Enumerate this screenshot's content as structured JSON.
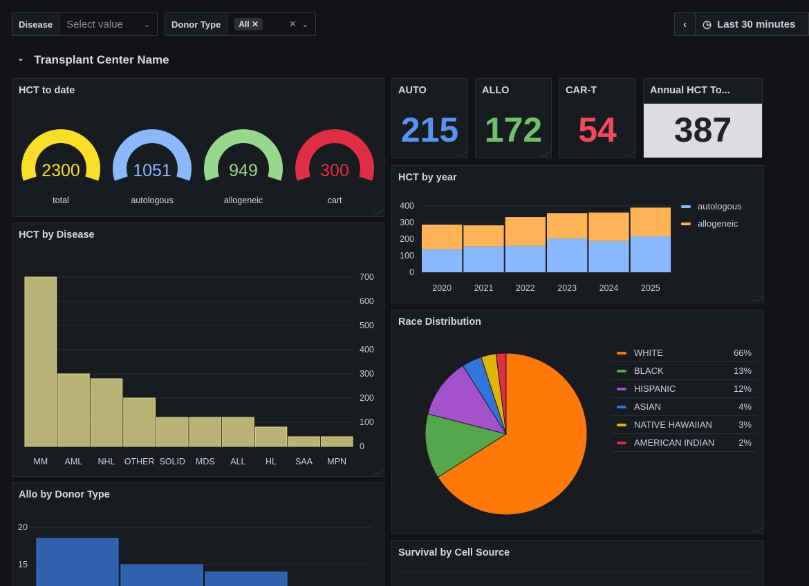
{
  "filters": {
    "disease": {
      "label": "Disease",
      "placeholder": "Select value"
    },
    "donor_type": {
      "label": "Donor Type",
      "chip": "All"
    }
  },
  "time_range": {
    "label": "Last 30 minutes"
  },
  "row_title": "Transplant Center Name",
  "gauges": {
    "title": "HCT to date",
    "items": [
      {
        "label": "total",
        "value": "2300",
        "color": "#fade2a"
      },
      {
        "label": "autologous",
        "value": "1051",
        "color": "#8ab8ff"
      },
      {
        "label": "allogeneic",
        "value": "949",
        "color": "#96d98d"
      },
      {
        "label": "cart",
        "value": "300",
        "color": "#e02f44"
      }
    ]
  },
  "stats": [
    {
      "title": "AUTO",
      "value": "215",
      "color": "#5794f2"
    },
    {
      "title": "ALLO",
      "value": "172",
      "color": "#73bf69"
    },
    {
      "title": "CAR-T",
      "value": "54",
      "color": "#f2495c"
    },
    {
      "title": "Annual HCT To...",
      "value": "387",
      "color": "#222"
    }
  ],
  "chart_data": [
    {
      "type": "bar",
      "title": "HCT by Disease",
      "categories": [
        "MM",
        "AML",
        "NHL",
        "OTHER",
        "SOLID",
        "MDS",
        "ALL",
        "HL",
        "SAA",
        "MPN"
      ],
      "values": [
        700,
        300,
        280,
        200,
        120,
        120,
        120,
        80,
        40,
        40
      ],
      "ylim": [
        0,
        700
      ],
      "yticks": [
        "0",
        "100",
        "200",
        "300",
        "400",
        "500",
        "600",
        "700"
      ],
      "grid": true,
      "color": "#e0d98a"
    },
    {
      "type": "bar",
      "stacked": true,
      "title": "HCT by year",
      "categories": [
        "2020",
        "2021",
        "2022",
        "2023",
        "2024",
        "2025"
      ],
      "series": [
        {
          "name": "autologous",
          "values": [
            140,
            155,
            160,
            203,
            188,
            217
          ],
          "color": "#8ab8ff"
        },
        {
          "name": "allogeneic",
          "values": [
            147,
            128,
            173,
            154,
            172,
            173
          ],
          "color": "#ffb357"
        }
      ],
      "ylim": [
        0,
        400
      ],
      "yticks": [
        "0",
        "100",
        "200",
        "300",
        "400"
      ],
      "legend": "right"
    },
    {
      "type": "pie",
      "title": "Race Distribution",
      "categories": [
        "WHITE",
        "BLACK",
        "HISPANIC",
        "ASIAN",
        "NATIVE HAWAIIAN",
        "AMERICAN INDIAN"
      ],
      "values": [
        66,
        13,
        12,
        4,
        3,
        2
      ],
      "labels": [
        "66%",
        "13%",
        "12%",
        "4%",
        "3%",
        "2%"
      ],
      "colors": [
        "#ff780a",
        "#56a64b",
        "#a352cc",
        "#3274d9",
        "#e0b400",
        "#e02f44"
      ],
      "legend": "right"
    },
    {
      "type": "bar",
      "title": "Allo by Donor Type",
      "values": [
        18.5,
        15,
        14
      ],
      "yticks": [
        "15",
        "20"
      ],
      "color": "#2f62ad"
    }
  ],
  "survival": {
    "title": "Survival by Cell Source"
  }
}
